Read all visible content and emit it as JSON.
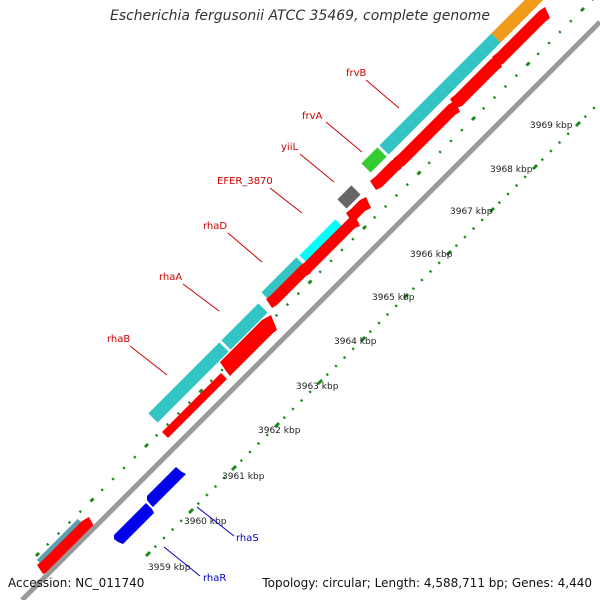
{
  "title": "Escherichia fergusonii ATCC 35469, complete genome",
  "footer": {
    "accession": "Accession: NC_011740",
    "topology": "Topology: circular; Length: 4,588,711 bp; Genes: 4,440"
  },
  "scale_labels": [
    "3959 kbp",
    "3960 kbp",
    "3961 kbp",
    "3962 kbp",
    "3963 kbp",
    "3964 kbp",
    "3965 kbp",
    "3966 kbp",
    "3967 kbp",
    "3968 kbp",
    "3969 kbp"
  ],
  "gene_labels": [
    {
      "name": "frvB",
      "color": "#cc0000"
    },
    {
      "name": "frvA",
      "color": "#cc0000"
    },
    {
      "name": "yiiL",
      "color": "#cc0000"
    },
    {
      "name": "EFER_3870",
      "color": "#cc0000"
    },
    {
      "name": "rhaD",
      "color": "#cc0000"
    },
    {
      "name": "rhaA",
      "color": "#cc0000"
    },
    {
      "name": "rhaB",
      "color": "#cc0000"
    },
    {
      "name": "rhaS",
      "color": "#0000cc"
    },
    {
      "name": "rhaR",
      "color": "#0000cc"
    }
  ],
  "colors": {
    "cds": "#ff0000",
    "cds_reverse": "#0000ee",
    "cog_teal": "#33c4c4",
    "cog_cyan": "#00ffff",
    "cog_orange": "#f29a1a",
    "cog_green": "#33cc33",
    "cog_gray": "#666666",
    "backbone": "#999999",
    "ticks": "#1b8a1b"
  }
}
